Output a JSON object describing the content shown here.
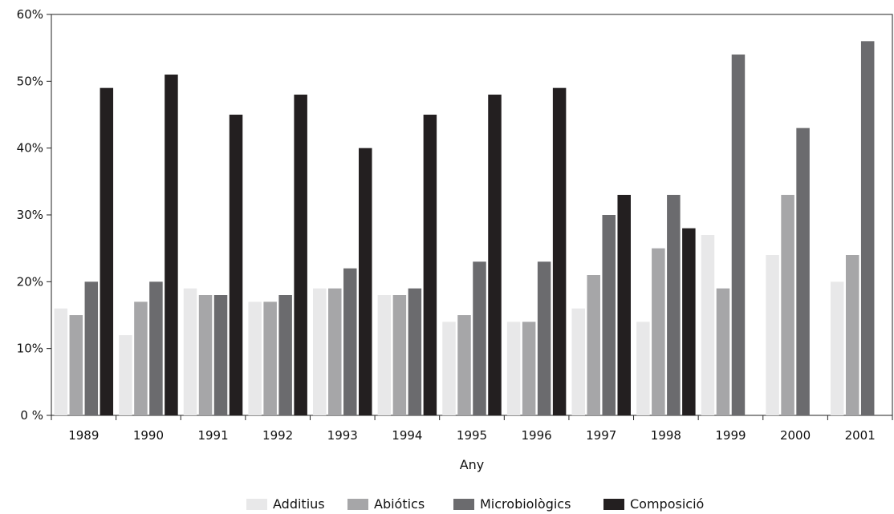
{
  "chart_data": {
    "type": "bar",
    "title": "",
    "xlabel": "Any",
    "ylabel": "",
    "ylim": [
      0,
      60
    ],
    "y_ticks": [
      {
        "value": 0,
        "label": "0 %"
      },
      {
        "value": 10,
        "label": "10%"
      },
      {
        "value": 20,
        "label": "20%"
      },
      {
        "value": 30,
        "label": "30%"
      },
      {
        "value": 40,
        "label": "40%"
      },
      {
        "value": 50,
        "label": "50%"
      },
      {
        "value": 60,
        "label": "60%"
      }
    ],
    "categories": [
      "1989",
      "1990",
      "1991",
      "1992",
      "1993",
      "1994",
      "1995",
      "1996",
      "1997",
      "1998",
      "1999",
      "2000",
      "2001"
    ],
    "series": [
      {
        "name": "Additius",
        "color": "#e8e8e9",
        "values": [
          16,
          12,
          19,
          17,
          19,
          18,
          14,
          14,
          16,
          14,
          27,
          24,
          20
        ]
      },
      {
        "name": "Abiótics",
        "color": "#a6a6a8",
        "values": [
          15,
          17,
          18,
          17,
          19,
          18,
          15,
          14,
          21,
          25,
          19,
          33,
          24
        ]
      },
      {
        "name": "Microbiològics",
        "color": "#6b6b6e",
        "values": [
          20,
          20,
          18,
          18,
          22,
          19,
          23,
          23,
          30,
          33,
          54,
          43,
          56
        ]
      },
      {
        "name": "Composició",
        "color": "#231f20",
        "values": [
          49,
          51,
          45,
          48,
          40,
          45,
          48,
          49,
          33,
          28,
          0,
          0,
          0
        ]
      }
    ],
    "grid": false,
    "legend_position": "bottom"
  }
}
